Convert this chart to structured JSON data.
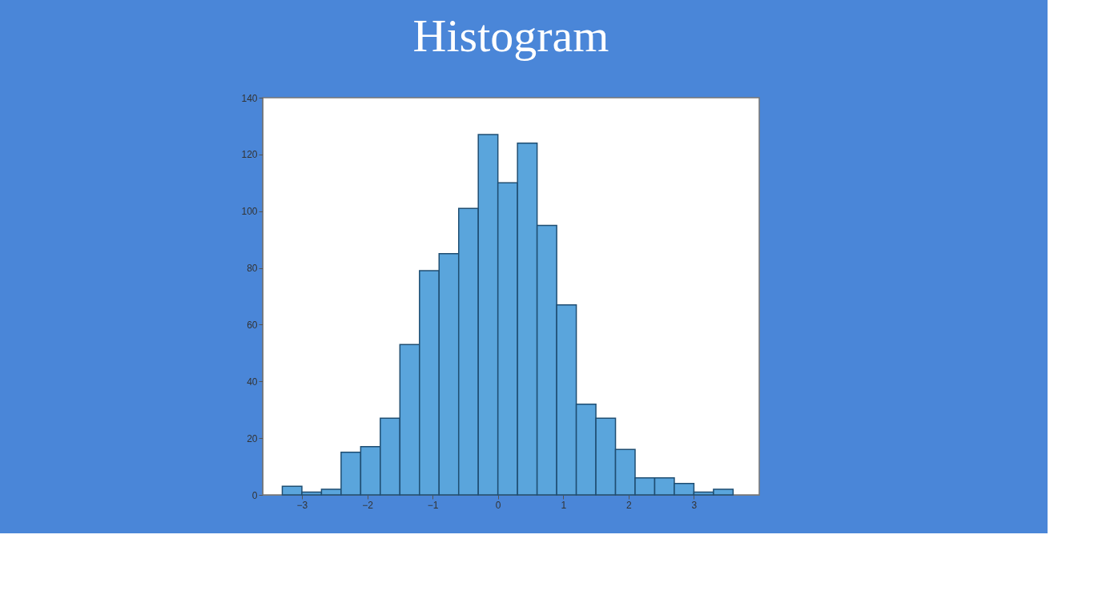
{
  "chart_data": {
    "type": "histogram",
    "title": "Histogram",
    "bins": [
      -3.3,
      -3.0,
      -2.7,
      -2.4,
      -2.1,
      -1.8,
      -1.5,
      -1.2,
      -0.9,
      -0.6,
      -0.3,
      0,
      0.3,
      0.6,
      0.9,
      1.2,
      1.5,
      1.8,
      2.1,
      2.4,
      2.7,
      3.0,
      3.3,
      3.6
    ],
    "values": [
      3,
      1,
      2,
      15,
      17,
      27,
      53,
      79,
      85,
      101,
      127,
      110,
      124,
      95,
      67,
      32,
      27,
      16,
      6,
      6,
      4,
      1,
      2
    ],
    "color": "#5aa5dc",
    "xlim": [
      -3.6,
      4
    ],
    "xticks": [
      -3,
      -2,
      -1,
      0,
      1,
      2,
      3
    ],
    "ylim": [
      0,
      140
    ],
    "yticks": [
      0,
      20,
      40,
      60,
      80,
      100,
      120,
      140
    ],
    "grid": false
  }
}
